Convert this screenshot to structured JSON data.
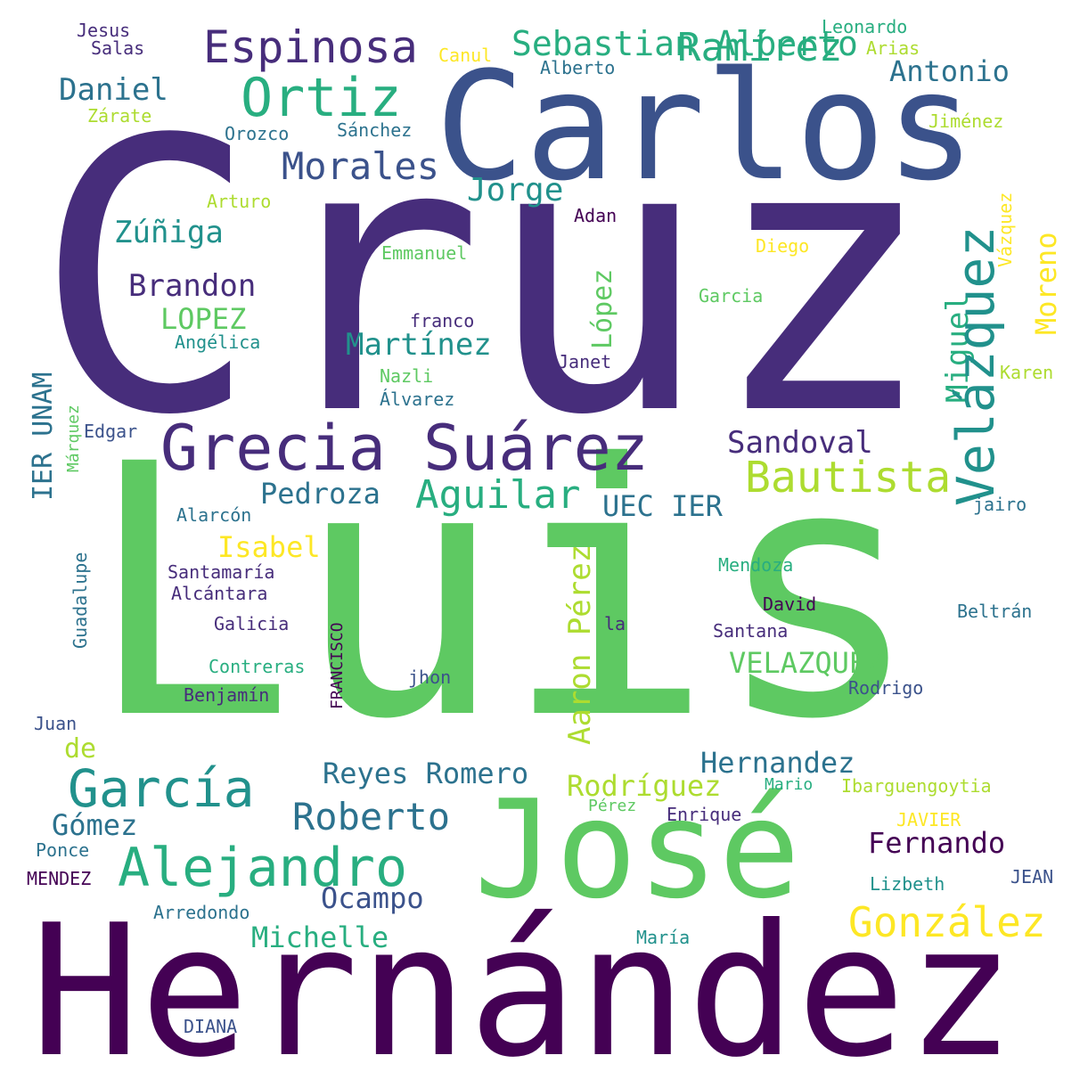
{
  "cloud": {
    "colors": {
      "dark_purple": "#472d7b",
      "deep_purple": "#440154",
      "indigo": "#3b528b",
      "teal_blue": "#2c728e",
      "teal": "#21918c",
      "green_teal": "#28ae80",
      "green": "#5ec962",
      "light_green": "#addc30",
      "yellow": "#fde725"
    },
    "words": [
      {
        "text": "Cruz"
      },
      {
        "text": "Luis"
      },
      {
        "text": "Hernández"
      },
      {
        "text": "Carlos"
      },
      {
        "text": "José"
      },
      {
        "text": "Grecia Suárez"
      },
      {
        "text": "Alejandro"
      },
      {
        "text": "García"
      },
      {
        "text": "Ortiz"
      },
      {
        "text": "Espinosa"
      },
      {
        "text": "Ramírez"
      },
      {
        "text": "Morales"
      },
      {
        "text": "Jorge"
      },
      {
        "text": "Sebastian Alberto"
      },
      {
        "text": "Bautista"
      },
      {
        "text": "Aguilar"
      },
      {
        "text": "Roberto"
      },
      {
        "text": "González"
      },
      {
        "text": "Miguel"
      },
      {
        "text": "Aaron Pérez"
      },
      {
        "text": "Velázquez"
      },
      {
        "text": "Daniel"
      },
      {
        "text": "Antonio"
      },
      {
        "text": "Zúñiga"
      },
      {
        "text": "Brandon"
      },
      {
        "text": "LOPEZ"
      },
      {
        "text": "López"
      },
      {
        "text": "Martínez"
      },
      {
        "text": "Sandoval"
      },
      {
        "text": "Pedroza"
      },
      {
        "text": "UEC IER"
      },
      {
        "text": "Isabel"
      },
      {
        "text": "VELAZQUEZ"
      },
      {
        "text": "Hernandez"
      },
      {
        "text": "Reyes Romero"
      },
      {
        "text": "Rodríguez"
      },
      {
        "text": "Gómez"
      },
      {
        "text": "Fernando"
      },
      {
        "text": "Ocampo"
      },
      {
        "text": "Michelle"
      },
      {
        "text": "Moreno"
      },
      {
        "text": "IER UNAM"
      },
      {
        "text": "de"
      },
      {
        "text": "Jesus"
      },
      {
        "text": "Salas"
      },
      {
        "text": "Canul"
      },
      {
        "text": "Alberto"
      },
      {
        "text": "Leonardo"
      },
      {
        "text": "Arias"
      },
      {
        "text": "Zárate"
      },
      {
        "text": "Orozco"
      },
      {
        "text": "Sánchez"
      },
      {
        "text": "Jiménez"
      },
      {
        "text": "Arturo"
      },
      {
        "text": "Adan"
      },
      {
        "text": "Emmanuel"
      },
      {
        "text": "Diego"
      },
      {
        "text": "Vázquez"
      },
      {
        "text": "Garcia"
      },
      {
        "text": "franco"
      },
      {
        "text": "Angélica"
      },
      {
        "text": "Janet"
      },
      {
        "text": "Nazli"
      },
      {
        "text": "Álvarez"
      },
      {
        "text": "Karen"
      },
      {
        "text": "Edgar"
      },
      {
        "text": "Márquez"
      },
      {
        "text": "Alarcón"
      },
      {
        "text": "jairo"
      },
      {
        "text": "Guadalupe"
      },
      {
        "text": "Santamaría"
      },
      {
        "text": "Mendoza"
      },
      {
        "text": "Alcántara"
      },
      {
        "text": "FRANCISCO"
      },
      {
        "text": "David"
      },
      {
        "text": "Galicia"
      },
      {
        "text": "la"
      },
      {
        "text": "Santana"
      },
      {
        "text": "Beltrán"
      },
      {
        "text": "Contreras"
      },
      {
        "text": "jhon"
      },
      {
        "text": "Benjamín"
      },
      {
        "text": "Rodrigo"
      },
      {
        "text": "Juan"
      },
      {
        "text": "Mario"
      },
      {
        "text": "Ibarguengoytia"
      },
      {
        "text": "Pérez"
      },
      {
        "text": "Enrique"
      },
      {
        "text": "JAVIER"
      },
      {
        "text": "Ponce"
      },
      {
        "text": "MENDEZ"
      },
      {
        "text": "Lizbeth"
      },
      {
        "text": "JEAN"
      },
      {
        "text": "Arredondo"
      },
      {
        "text": "María"
      },
      {
        "text": "DIANA"
      }
    ]
  }
}
